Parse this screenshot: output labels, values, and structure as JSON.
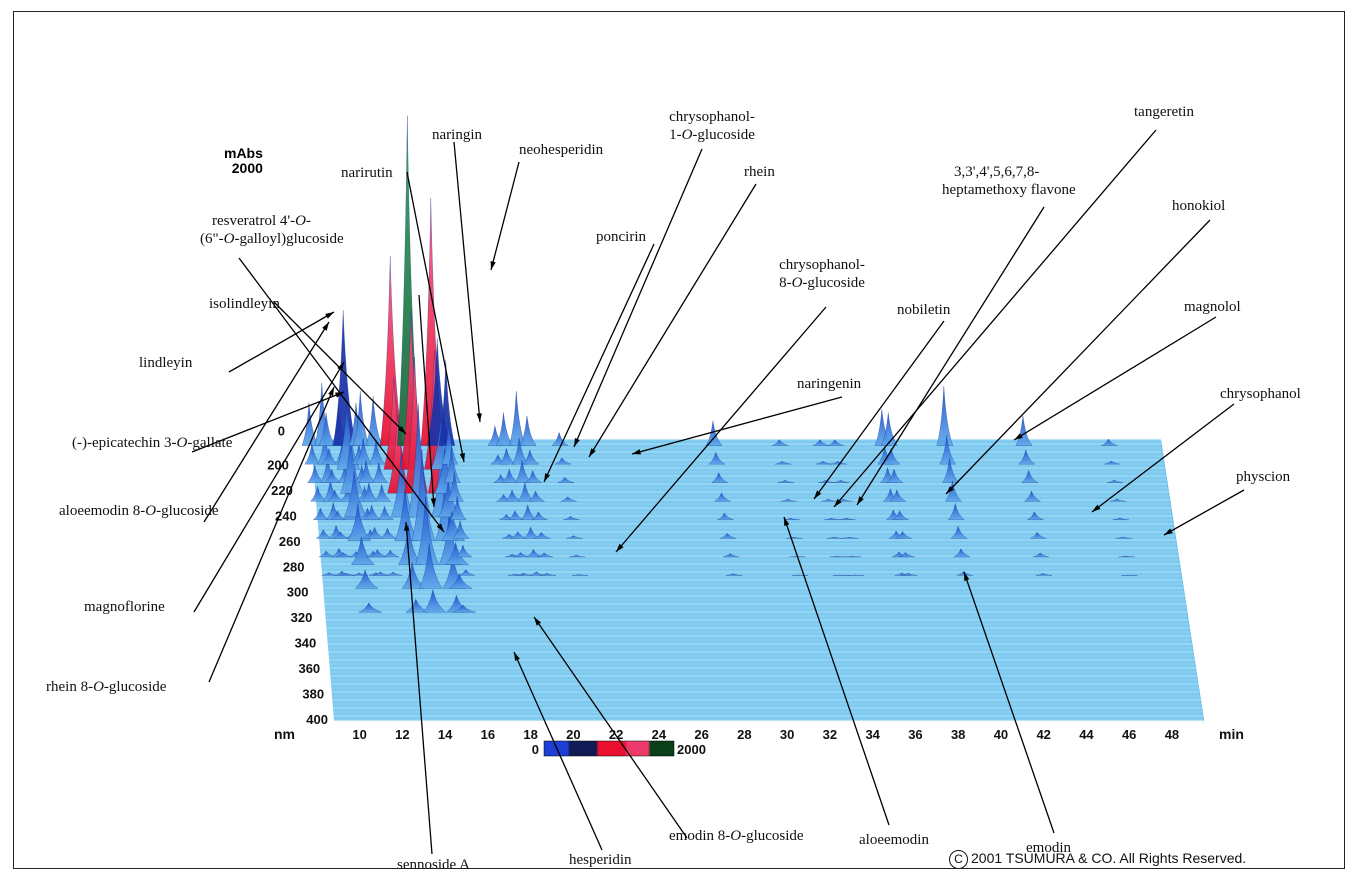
{
  "chart_data": {
    "type": "3d-chromatogram",
    "x_axis": {
      "unit": "min",
      "ticks": [
        "10",
        "12",
        "14",
        "16",
        "18",
        "20",
        "22",
        "24",
        "26",
        "28",
        "30",
        "32",
        "34",
        "36",
        "38",
        "40",
        "42",
        "44",
        "46",
        "48"
      ]
    },
    "wavelength_axis": {
      "unit": "nm",
      "ticks": [
        "0",
        "200",
        "220",
        "240",
        "260",
        "280",
        "300",
        "320",
        "340",
        "360",
        "380",
        "400"
      ]
    },
    "z_axis": {
      "unit": "mAbs",
      "max": "2000"
    },
    "colorbar": {
      "min": "0",
      "max": "2000",
      "colors": [
        "#1e3fd6",
        "#101a55",
        "#e8102e",
        "#ee3a6a",
        "#0a3f1a"
      ]
    },
    "peaks": [
      {
        "name": "resveratrol 4'-O-(6\"-O-galloyl)glucoside",
        "rt": 12.6,
        "height": 300
      },
      {
        "name": "isolindleyin",
        "rt": 11.8,
        "height": 260
      },
      {
        "name": "lindleyin",
        "rt": 11.0,
        "height": 240
      },
      {
        "name": "(-)-epicatechin 3-O-gallate",
        "rt": 10.4,
        "height": 200
      },
      {
        "name": "aloeemodin 8-O-glucoside",
        "rt": 10.2,
        "height": 380
      },
      {
        "name": "magnoflorine",
        "rt": 9.6,
        "height": 260
      },
      {
        "name": "rhein 8-O-glucoside",
        "rt": 11.2,
        "height": 820
      },
      {
        "name": "sennoside A",
        "rt": 12.0,
        "height": 330
      },
      {
        "name": "narirutin",
        "rt": 13.4,
        "height": 1150
      },
      {
        "name": "naringin",
        "rt": 14.2,
        "height": 2000
      },
      {
        "name": "neohesperidin",
        "rt": 15.3,
        "height": 1500
      },
      {
        "name": "hesperidin",
        "rt": 15.6,
        "height": 650
      },
      {
        "name": "emodin 8-O-glucoside",
        "rt": 16.0,
        "height": 520
      },
      {
        "name": "poncirin",
        "rt": 18.3,
        "height": 120
      },
      {
        "name": "chrysophanol-1-O-glucoside",
        "rt": 18.7,
        "height": 200
      },
      {
        "name": "rhein",
        "rt": 19.3,
        "height": 330
      },
      {
        "name": "chrysophanol-8-O-glucoside",
        "rt": 19.8,
        "height": 180
      },
      {
        "name": "naringenin",
        "rt": 21.3,
        "height": 80
      },
      {
        "name": "aloeemodin",
        "rt": 28.5,
        "height": 150
      },
      {
        "name": "nobiletin",
        "rt": 31.6,
        "height": 30
      },
      {
        "name": "3,3',4',5,6,7,8-heptamethoxy flavone",
        "rt": 33.5,
        "height": 30
      },
      {
        "name": "tangeretin",
        "rt": 34.2,
        "height": 30
      },
      {
        "name": "emodin",
        "rt": 36.7,
        "height": 200
      },
      {
        "name": "honokiol",
        "rt": 36.4,
        "height": 220
      },
      {
        "name": "magnolol",
        "rt": 39.3,
        "height": 360
      },
      {
        "name": "chrysophanol",
        "rt": 43.0,
        "height": 180
      },
      {
        "name": "physcion",
        "rt": 47.0,
        "height": 40
      }
    ]
  },
  "axis": {
    "mabs_label": "mAbs",
    "mabs_max": "2000",
    "nm_label": "nm",
    "min_label": "min",
    "colorbar_min": "0",
    "colorbar_max": "2000"
  },
  "labels": {
    "naringin": "naringin",
    "narirutin": "narirutin",
    "neohesperidin": "neohesperidin",
    "chrysophanol_1_glc_a": "chrysophanol-",
    "chrysophanol_1_glc_b": "1-O-glucoside",
    "rhein": "rhein",
    "chrysophanol_8_glc_a": "chrysophanol-",
    "chrysophanol_8_glc_b": "8-O-glucoside",
    "poncirin": "poncirin",
    "tangeretin": "tangeretin",
    "heptamethoxy_a": "3,3',4',5,6,7,8-",
    "heptamethoxy_b": "heptamethoxy flavone",
    "honokiol": "honokiol",
    "magnolol": "magnolol",
    "nobiletin": "nobiletin",
    "naringenin": "naringenin",
    "chrysophanol": "chrysophanol",
    "physcion": "physcion",
    "resveratrol_a": "resveratrol 4'-O-",
    "resveratrol_b": "(6\"-O-galloyl)glucoside",
    "isolindleyin": "isolindleyin",
    "lindleyin": "lindleyin",
    "epicatechin": "(-)-epicatechin 3-O-gallate",
    "aloeemodin_8_glc": "aloeemodin 8-O-glucoside",
    "magnoflorine": "magnoflorine",
    "rhein_8_glc": "rhein 8-O-glucoside",
    "sennoside": "sennoside A",
    "hesperidin": "hesperidin",
    "emodin_8_glc": "emodin 8-O-glucoside",
    "aloeemodin": "aloeemodin",
    "emodin": "emodin"
  },
  "copyright": "2001 TSUMURA & CO. All Rights Reserved.",
  "copyright_symbol": "C"
}
